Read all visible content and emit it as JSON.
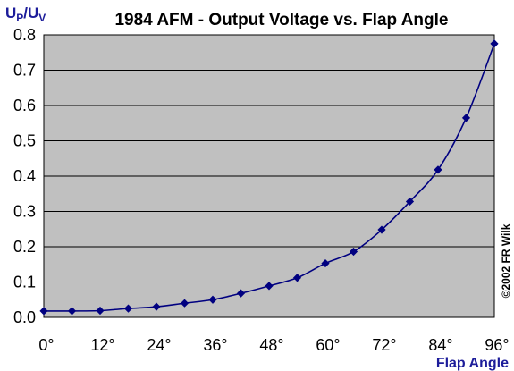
{
  "chart_data": {
    "type": "line",
    "title": "1984 AFM - Output Voltage vs. Flap Angle",
    "ylabel": {
      "main": "U",
      "sub1": "P",
      "sep": "/U",
      "sub2": "V"
    },
    "xlabel": "Flap Angle",
    "copyright": "©2002  FR Wilk",
    "xlim": [
      0,
      96
    ],
    "ylim": [
      0,
      0.8
    ],
    "x_ticks": [
      0,
      12,
      24,
      36,
      48,
      60,
      72,
      84,
      96
    ],
    "x_tick_labels": [
      "0°",
      "12°",
      "24°",
      "36°",
      "48°",
      "60°",
      "72°",
      "84°",
      "96°"
    ],
    "y_ticks": [
      0,
      0.1,
      0.2,
      0.3,
      0.4,
      0.5,
      0.6,
      0.7,
      0.8
    ],
    "y_tick_labels": [
      "0.0",
      "0.1",
      "0.2",
      "0.3",
      "0.4",
      "0.5",
      "0.6",
      "0.7",
      "0.8"
    ],
    "grid": "horizontal",
    "series": [
      {
        "x": [
          0,
          6,
          12,
          18,
          24,
          30,
          36,
          42,
          48,
          54,
          60,
          66,
          72,
          78,
          84,
          90,
          96
        ],
        "y": [
          0.018,
          0.018,
          0.019,
          0.025,
          0.03,
          0.04,
          0.05,
          0.068,
          0.089,
          0.112,
          0.153,
          0.186,
          0.248,
          0.328,
          0.418,
          0.565,
          0.775
        ]
      }
    ],
    "colors": {
      "plot_bg": "#c0c0c0",
      "line": "#000080",
      "marker": "#000080",
      "gridline": "#000000",
      "axis_label": "#1c1c9a"
    }
  }
}
